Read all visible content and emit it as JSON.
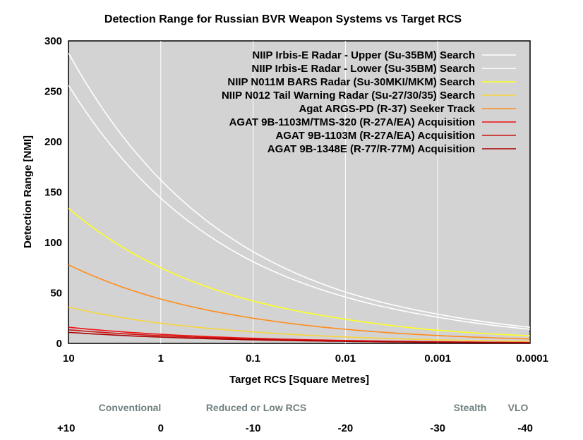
{
  "chart_data": {
    "type": "line",
    "title": "Detection Range for Russian BVR Weapon Systems vs Target RCS",
    "xlabel": "Target RCS [Square Metres]",
    "ylabel": "Detection Range [NMI]",
    "xscale": "log-reversed",
    "xlim": [
      10,
      0.0001
    ],
    "ylim": [
      0,
      300
    ],
    "x_ticks": [
      "10",
      "1",
      "0.1",
      "0.01",
      "0.001",
      "0.0001"
    ],
    "y_ticks": [
      "0",
      "50",
      "100",
      "150",
      "200",
      "250",
      "300"
    ],
    "grid": true,
    "legend_position": "top-right",
    "x": [
      10,
      1,
      0.1,
      0.01,
      0.001,
      0.0001
    ],
    "series": [
      {
        "name": "NIIP Irbis-E Radar - Upper (Su-35BM) Search",
        "color": "#ffffff",
        "values": [
          288,
          162,
          91,
          51,
          29,
          16
        ]
      },
      {
        "name": "NIIP Irbis-E Radar - Lower (Su-35BM) Search",
        "color": "#ffffff",
        "values": [
          256,
          144,
          81,
          46,
          26,
          14
        ]
      },
      {
        "name": "NIIP N011M BARS Radar (Su-30MKI/MKM) Search",
        "color": "#ffff22",
        "values": [
          134,
          75,
          42,
          24,
          13,
          7.5
        ]
      },
      {
        "name": "NIIP N012 Tail Warning Radar (Su-27/30/35) Search",
        "color": "#f7d43c",
        "values": [
          36,
          20,
          11.4,
          6.4,
          3.6,
          2.0
        ]
      },
      {
        "name": "Agat ARGS-PD (R-37) Seeker Track",
        "color": "#ff8c1a",
        "values": [
          78,
          44,
          25,
          14,
          7.8,
          4.4
        ]
      },
      {
        "name": "AGAT 9B-1103M/TMS-320 (R-27A/EA) Acquisition",
        "color": "#ee1111",
        "values": [
          16,
          9,
          5.1,
          2.9,
          1.6,
          0.9
        ]
      },
      {
        "name": "AGAT 9B-1103M (R-27A/EA) Acquisition",
        "color": "#cc1111",
        "values": [
          13.5,
          7.6,
          4.3,
          2.4,
          1.35,
          0.76
        ]
      },
      {
        "name": "AGAT 9B-1348E (R-77/R-77M) Acquisition",
        "color": "#aa0000",
        "values": [
          11,
          6.2,
          3.5,
          2.0,
          1.1,
          0.62
        ]
      }
    ],
    "rcs_bands": [
      "Conventional",
      "Reduced or Low RCS",
      "Stealth",
      "VLO"
    ],
    "dbsm_ticks": [
      "+10",
      "0",
      "-10",
      "-20",
      "-30",
      "-40"
    ]
  }
}
